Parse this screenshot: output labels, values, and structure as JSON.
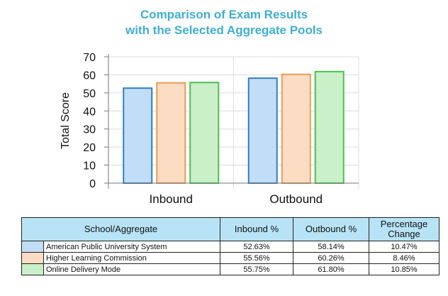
{
  "chart_data": {
    "type": "bar",
    "title": [
      "Comparison of Exam Results",
      "with the Selected Aggregate Pools"
    ],
    "xlabel": "",
    "ylabel": "Total Score",
    "ylim": [
      0,
      70
    ],
    "yticks": [
      0,
      10,
      20,
      30,
      40,
      50,
      60,
      70
    ],
    "categories": [
      "Inbound",
      "Outbound"
    ],
    "series": [
      {
        "name": "American Public University System",
        "values": [
          52.63,
          58.14
        ],
        "fill": "#c2def7",
        "stroke": "#2f7fc1"
      },
      {
        "name": "Higher Learning Commission",
        "values": [
          55.56,
          60.26
        ],
        "fill": "#fcdcc3",
        "stroke": "#ea9b54"
      },
      {
        "name": "Online Delivery Mode",
        "values": [
          55.75,
          61.8
        ],
        "fill": "#c9f0c8",
        "stroke": "#4cc04c"
      }
    ],
    "grid": true,
    "legend": "table below chart"
  },
  "table": {
    "headers": [
      "School/Aggregate",
      "Inbound %",
      "Outbound %",
      "Percentage Change"
    ],
    "rows": [
      {
        "school": "American Public University System",
        "inbound": "52.63%",
        "outbound": "58.14%",
        "change": "10.47%",
        "color": "#c2def7"
      },
      {
        "school": "Higher Learning Commission",
        "inbound": "55.56%",
        "outbound": "60.26%",
        "change": "8.46%",
        "color": "#fcdcc3"
      },
      {
        "school": "Online Delivery Mode",
        "inbound": "55.75%",
        "outbound": "61.80%",
        "change": "10.85%",
        "color": "#c9f0c8"
      }
    ]
  }
}
